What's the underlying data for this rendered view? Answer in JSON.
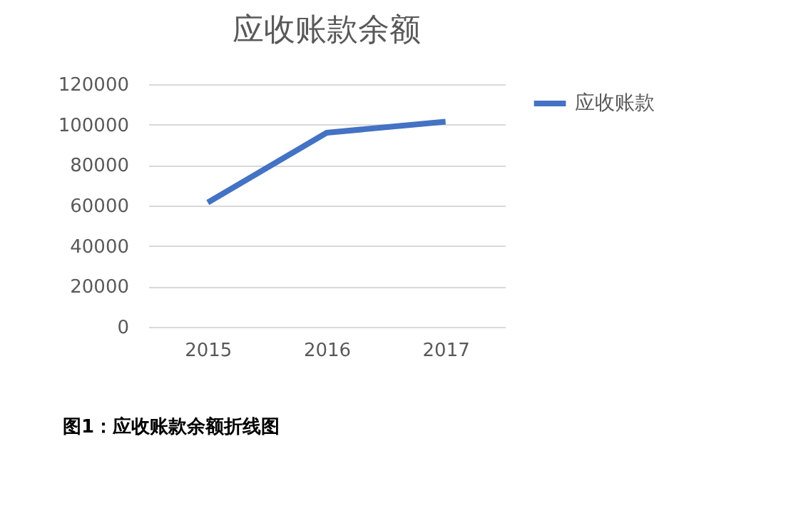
{
  "chart_data": {
    "type": "line",
    "title": "应收账款余额",
    "categories": [
      "2015",
      "2016",
      "2017"
    ],
    "series": [
      {
        "name": "应收账款",
        "color": "#4472c4",
        "values": [
          61500,
          96000,
          101500
        ]
      }
    ],
    "ylim": [
      0,
      120000
    ],
    "yticks": [
      0,
      20000,
      40000,
      60000,
      80000,
      100000,
      120000
    ],
    "grid": "y",
    "legend": "right",
    "marker": "none",
    "line_style": "solid",
    "annotations": [
      "图1：应收账款余额折线图"
    ]
  }
}
